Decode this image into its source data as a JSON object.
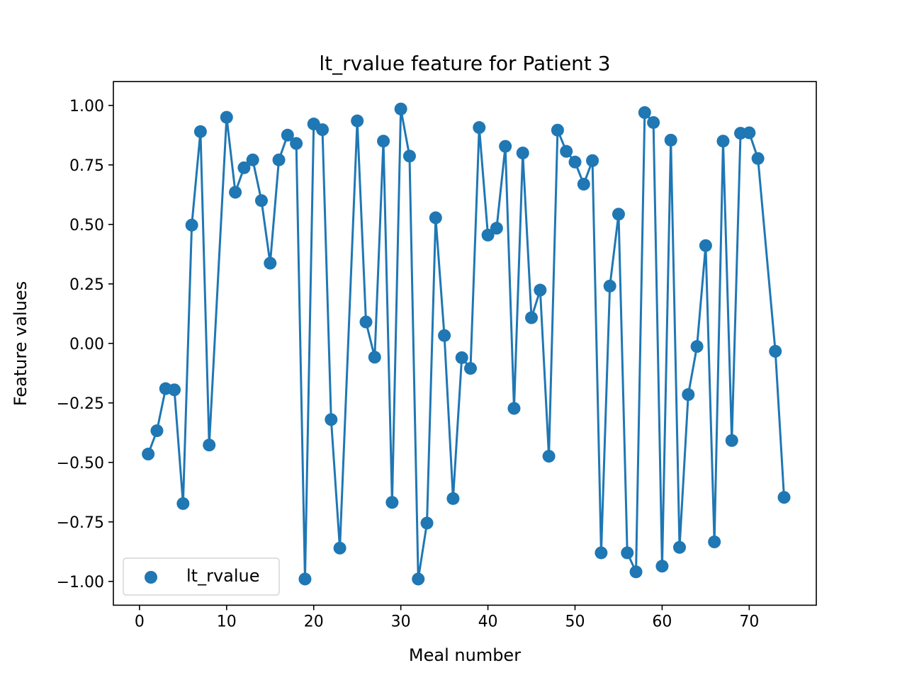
{
  "chart_data": {
    "type": "line",
    "title": "lt_rvalue feature for Patient 3",
    "xlabel": "Meal number",
    "ylabel": "Feature values",
    "xlim": [
      -3,
      77.7
    ],
    "ylim": [
      -1.1,
      1.1
    ],
    "xticks": [
      0,
      10,
      20,
      30,
      40,
      50,
      60,
      70
    ],
    "yticks": [
      1.0,
      0.75,
      0.5,
      0.25,
      0.0,
      -0.25,
      -0.5,
      -0.75,
      -1.0
    ],
    "xtick_labels": [
      "0",
      "10",
      "20",
      "30",
      "40",
      "50",
      "60",
      "70"
    ],
    "ytick_labels": [
      "1.00",
      "0.75",
      "0.50",
      "0.25",
      "0.00",
      "−0.25",
      "−0.50",
      "−0.75",
      "−1.00"
    ],
    "grid": false,
    "legend": {
      "position": "lower left",
      "label": "lt_rvalue"
    },
    "series": [
      {
        "name": "lt_rvalue",
        "color": "#1f77b4",
        "marker": "circle",
        "x": [
          1,
          2,
          3,
          4,
          5,
          6,
          7,
          8,
          10,
          11,
          12,
          13,
          14,
          15,
          16,
          17,
          18,
          19,
          20,
          21,
          22,
          23,
          25,
          26,
          27,
          28,
          29,
          30,
          31,
          32,
          33,
          34,
          35,
          36,
          37,
          38,
          39,
          40,
          41,
          42,
          43,
          44,
          45,
          46,
          47,
          48,
          49,
          50,
          51,
          52,
          53,
          54,
          55,
          56,
          57,
          58,
          59,
          60,
          61,
          62,
          63,
          64,
          65,
          66,
          67,
          68,
          69,
          70,
          71,
          73,
          74
        ],
        "y": [
          -0.465,
          -0.367,
          -0.19,
          -0.195,
          -0.673,
          0.497,
          0.89,
          -0.427,
          0.95,
          0.635,
          0.738,
          0.771,
          0.6,
          0.337,
          0.771,
          0.875,
          0.84,
          -0.99,
          0.922,
          0.898,
          -0.32,
          -0.86,
          0.935,
          0.09,
          -0.058,
          0.85,
          -0.668,
          0.985,
          0.787,
          -0.99,
          -0.755,
          0.528,
          0.033,
          -0.652,
          -0.06,
          -0.105,
          0.907,
          0.455,
          0.484,
          0.828,
          -0.273,
          0.8,
          0.108,
          0.224,
          -0.474,
          0.896,
          0.807,
          0.762,
          0.669,
          0.768,
          -0.88,
          0.241,
          0.543,
          -0.88,
          -0.96,
          0.97,
          0.928,
          -0.936,
          0.854,
          -0.857,
          -0.215,
          -0.013,
          0.411,
          -0.834,
          0.85,
          -0.408,
          0.883,
          0.885,
          0.777,
          -0.033,
          -0.647
        ]
      }
    ]
  }
}
